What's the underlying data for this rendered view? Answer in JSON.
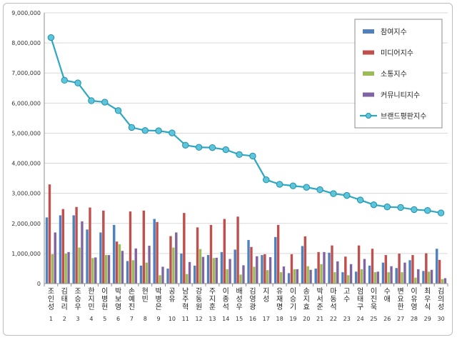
{
  "chart_data": {
    "type": "bar",
    "ylim": [
      0,
      9000000
    ],
    "yticks": [
      "0",
      "1,000,000",
      "2,000,000",
      "3,000,000",
      "4,000,000",
      "5,000,000",
      "6,000,000",
      "7,000,000",
      "8,000,000",
      "9,000,000"
    ],
    "grid": true,
    "legend_position": "top-right",
    "categories": [
      "조인성",
      "김태리",
      "조승우",
      "한지민",
      "이병헌",
      "박보영",
      "손예진",
      "현빈",
      "박병은",
      "공유",
      "남주혁",
      "강동원",
      "주지훈",
      "이종석",
      "배성우",
      "김영광",
      "지성",
      "유재명",
      "이승기",
      "송지효",
      "박서준",
      "마동석",
      "고수",
      "엄태구",
      "이진욱",
      "수애",
      "변요한",
      "이유영",
      "최우식",
      "김의성"
    ],
    "index_labels": [
      "1",
      "2",
      "3",
      "4",
      "5",
      "6",
      "7",
      "8",
      "9",
      "10",
      "11",
      "12",
      "13",
      "14",
      "15",
      "16",
      "17",
      "18",
      "19",
      "20",
      "21",
      "22",
      "23",
      "24",
      "25",
      "26",
      "27",
      "28",
      "29",
      "30"
    ],
    "series": [
      {
        "name": "참여지수",
        "color": "#4f81bd",
        "values": [
          2200000,
          2270000,
          2270000,
          1800000,
          1700000,
          1950000,
          750000,
          600000,
          2150000,
          500000,
          1000000,
          600000,
          950000,
          1050000,
          1130000,
          1450000,
          950000,
          1550000,
          350000,
          1250000,
          500000,
          1030000,
          380000,
          400000,
          600000,
          700000,
          520000,
          780000,
          420000,
          1160000
        ]
      },
      {
        "name": "미디어지수",
        "color": "#c0504d",
        "values": [
          3300000,
          2480000,
          2550000,
          2530000,
          2430000,
          1400000,
          2400000,
          2430000,
          2050000,
          1580000,
          2350000,
          1870000,
          1950000,
          2150000,
          2230000,
          1220000,
          980000,
          1950000,
          980000,
          1570000,
          1050000,
          1270000,
          900000,
          1270000,
          1160000,
          950000,
          1000000,
          950000,
          1010000,
          790000
        ]
      },
      {
        "name": "소통지수",
        "color": "#9bbb59",
        "values": [
          980000,
          1000000,
          1200000,
          850000,
          950000,
          1310000,
          780000,
          700000,
          280000,
          1200000,
          320000,
          1150000,
          850000,
          480000,
          300000,
          560000,
          450000,
          380000,
          480000,
          580000,
          650000,
          380000,
          280000,
          480000,
          380000,
          380000,
          380000,
          200000,
          400000,
          150000
        ]
      },
      {
        "name": "커뮤니티지수",
        "color": "#8064a2",
        "values": [
          1700000,
          1050000,
          2070000,
          870000,
          950000,
          1090000,
          1170000,
          1260000,
          560000,
          1700000,
          720000,
          890000,
          860000,
          820000,
          610000,
          910000,
          880000,
          570000,
          480000,
          460000,
          1050000,
          740000,
          650000,
          820000,
          400000,
          580000,
          700000,
          480000,
          460000,
          180000
        ]
      },
      {
        "name": "브랜드평판지수",
        "color": "#2ea7c2",
        "type": "line",
        "values": [
          8180000,
          6760000,
          6670000,
          6080000,
          6030000,
          5750000,
          5190000,
          5090000,
          5080000,
          5010000,
          4600000,
          4530000,
          4520000,
          4450000,
          4290000,
          4240000,
          3450000,
          3300000,
          3250000,
          3200000,
          3120000,
          2990000,
          2930000,
          2780000,
          2620000,
          2550000,
          2530000,
          2460000,
          2430000,
          2350000
        ]
      }
    ]
  }
}
